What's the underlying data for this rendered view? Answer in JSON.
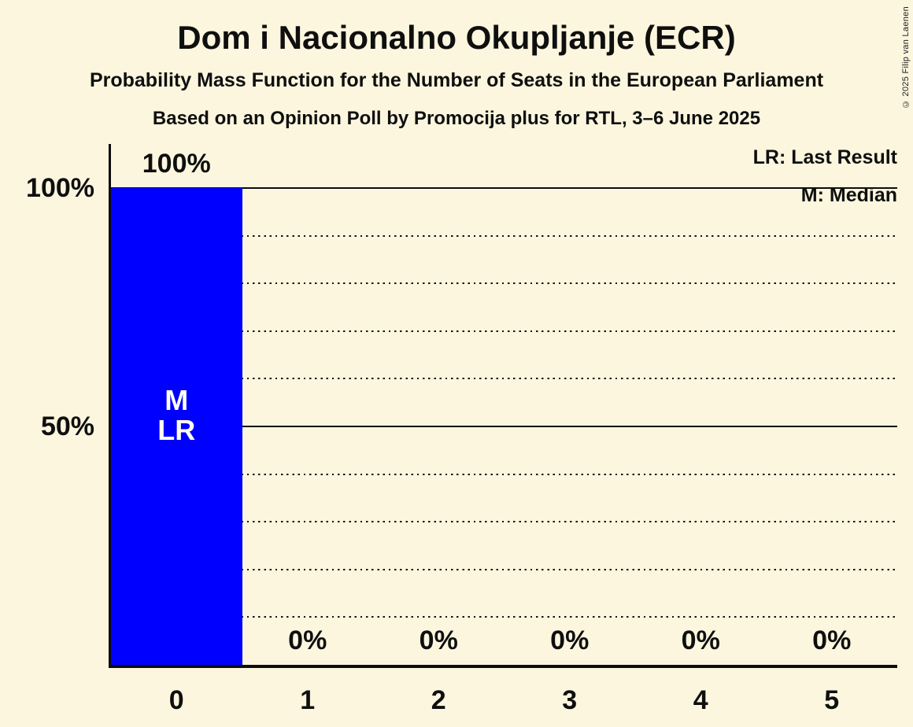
{
  "copyright": "© 2025 Filip van Laenen",
  "legend": {
    "lr": "LR: Last Result",
    "m": "M: Median"
  },
  "chart_data": {
    "type": "bar",
    "title": "Dom i Nacionalno Okupljanje (ECR)",
    "subtitle": "Probability Mass Function for the Number of Seats in the European Parliament",
    "source_line": "Based on an Opinion Poll by Promocija plus for RTL, 3–6 June 2025",
    "categories": [
      "0",
      "1",
      "2",
      "3",
      "4",
      "5"
    ],
    "values": [
      100,
      0,
      0,
      0,
      0,
      0
    ],
    "value_labels": [
      "100%",
      "0%",
      "0%",
      "0%",
      "0%",
      "0%"
    ],
    "bar_annotations": [
      [
        "M",
        "LR"
      ],
      [],
      [],
      [],
      [],
      []
    ],
    "ylim": [
      0,
      100
    ],
    "y_ticks": [
      {
        "value": 100,
        "label": "100%"
      },
      {
        "value": 50,
        "label": "50%"
      }
    ],
    "gridlines": {
      "solid": [
        100,
        50
      ],
      "dotted": [
        90,
        80,
        70,
        60,
        40,
        30,
        20,
        10
      ]
    },
    "legend_position": "top-right",
    "grid": "horizontal only",
    "colors": {
      "background": "#FCF6DE",
      "bar": "#0000FF",
      "bar_annotation_text": "#FFFFF2",
      "text": "#0F0F0F"
    }
  }
}
